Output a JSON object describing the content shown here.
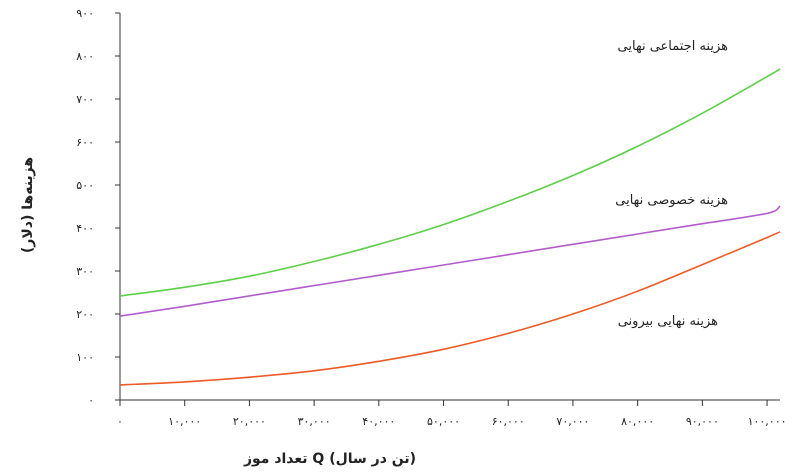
{
  "chart_data": {
    "type": "line",
    "xlabel": "تعداد موز Q (تن در سال)",
    "ylabel": "هزینه‌ها (دلار)",
    "xlim": [
      0,
      102000
    ],
    "ylim": [
      0,
      900
    ],
    "x_ticks": [
      0,
      10000,
      20000,
      30000,
      40000,
      50000,
      60000,
      70000,
      80000,
      90000,
      100000
    ],
    "x_tick_labels": [
      "۰",
      "۱۰,۰۰۰",
      "۲۰,۰۰۰",
      "۳۰,۰۰۰",
      "۴۰,۰۰۰",
      "۵۰,۰۰۰",
      "۶۰,۰۰۰",
      "۷۰,۰۰۰",
      "۸۰,۰۰۰",
      "۹۰,۰۰۰",
      "۱۰۰,۰۰۰"
    ],
    "y_ticks": [
      0,
      100,
      200,
      300,
      400,
      500,
      600,
      700,
      800,
      900
    ],
    "y_tick_labels": [
      "۰",
      "۱۰۰",
      "۲۰۰",
      "۳۰۰",
      "۴۰۰",
      "۵۰۰",
      "۶۰۰",
      "۷۰۰",
      "۸۰۰",
      "۹۰۰"
    ],
    "grid": false,
    "x": [
      0,
      10000,
      20000,
      30000,
      40000,
      50000,
      60000,
      70000,
      80000,
      90000,
      100000,
      102000
    ],
    "series": [
      {
        "name": "هزینه اجتماعی نهایی",
        "color": "#5dcf48",
        "values": [
          242,
          262,
          288,
          322,
          362,
          408,
          462,
          522,
          590,
          667,
          752,
          770
        ]
      },
      {
        "name": "هزینه خصوصی نهایی",
        "color": "#b35dcc",
        "values": [
          195,
          218,
          242,
          266,
          290,
          314,
          338,
          362,
          386,
          410,
          434,
          451
        ]
      },
      {
        "name": "هزینه نهایی بیرونی",
        "color": "#ee5a24",
        "values": [
          35,
          42,
          53,
          68,
          90,
          118,
          155,
          200,
          253,
          315,
          378,
          391
        ]
      }
    ]
  }
}
